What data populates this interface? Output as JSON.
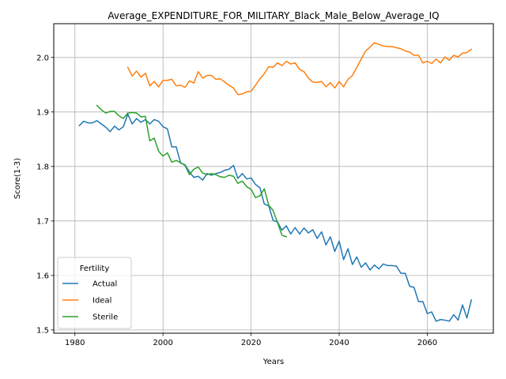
{
  "chart_data": {
    "type": "line",
    "title": "Average_EXPENDITURE_FOR_MILITARY_Black_Male_Below_Average_IQ",
    "xlabel": "Years",
    "ylabel": "Score(1-3)",
    "xlim": [
      1975.2,
      2075
    ],
    "ylim": [
      1.494,
      2.062
    ],
    "xticks": [
      1980,
      2000,
      2020,
      2040,
      2060
    ],
    "yticks": [
      1.5,
      1.6,
      1.7,
      1.8,
      1.9,
      2.0
    ],
    "ytick_format": "1f",
    "grid": true,
    "legend": {
      "title": "Fertility",
      "placement": "lower-left"
    },
    "series": [
      {
        "name": "Actual",
        "color": "#1f77b4",
        "x": [
          1981,
          1982,
          1983,
          1984,
          1985,
          1986,
          1987,
          1988,
          1989,
          1990,
          1991,
          1992,
          1993,
          1994,
          1995,
          1996,
          1997,
          1998,
          1999,
          2000,
          2001,
          2002,
          2003,
          2004,
          2005,
          2006,
          2007,
          2008,
          2009,
          2010,
          2011,
          2012,
          2013,
          2014,
          2015,
          2016,
          2017,
          2018,
          2019,
          2020,
          2021,
          2022,
          2023,
          2024,
          2025,
          2026,
          2027,
          2028,
          2029,
          2030,
          2031,
          2032,
          2033,
          2034,
          2035,
          2036,
          2037,
          2038,
          2039,
          2040,
          2041,
          2042,
          2043,
          2044,
          2045,
          2046,
          2047,
          2048,
          2049,
          2050,
          2051,
          2052,
          2053,
          2054,
          2055,
          2056,
          2057,
          2058,
          2059,
          2060,
          2061,
          2062,
          2063,
          2064,
          2065,
          2066,
          2067,
          2068,
          2069,
          2070
        ],
        "values": [
          1.875,
          1.883,
          1.88,
          1.88,
          1.884,
          1.878,
          1.872,
          1.864,
          1.874,
          1.867,
          1.873,
          1.896,
          1.878,
          1.888,
          1.881,
          1.886,
          1.878,
          1.886,
          1.883,
          1.873,
          1.869,
          1.836,
          1.836,
          1.806,
          1.803,
          1.79,
          1.78,
          1.782,
          1.775,
          1.787,
          1.784,
          1.787,
          1.789,
          1.793,
          1.795,
          1.802,
          1.778,
          1.787,
          1.777,
          1.779,
          1.767,
          1.761,
          1.731,
          1.728,
          1.701,
          1.698,
          1.683,
          1.691,
          1.676,
          1.688,
          1.676,
          1.687,
          1.678,
          1.684,
          1.668,
          1.68,
          1.656,
          1.671,
          1.644,
          1.663,
          1.629,
          1.649,
          1.62,
          1.634,
          1.615,
          1.623,
          1.61,
          1.619,
          1.612,
          1.621,
          1.618,
          1.618,
          1.617,
          1.604,
          1.604,
          1.58,
          1.578,
          1.552,
          1.552,
          1.53,
          1.533,
          1.516,
          1.519,
          1.518,
          1.516,
          1.528,
          1.518,
          1.546,
          1.522,
          1.555
        ]
      },
      {
        "name": "Ideal",
        "color": "#ff7f0e",
        "x": [
          1992,
          1993,
          1994,
          1995,
          1996,
          1997,
          1998,
          1999,
          2000,
          2001,
          2002,
          2003,
          2004,
          2005,
          2006,
          2007,
          2008,
          2009,
          2010,
          2011,
          2012,
          2013,
          2014,
          2015,
          2016,
          2017,
          2018,
          2019,
          2020,
          2021,
          2022,
          2023,
          2024,
          2025,
          2026,
          2027,
          2028,
          2029,
          2030,
          2031,
          2032,
          2033,
          2034,
          2035,
          2036,
          2037,
          2038,
          2039,
          2040,
          2041,
          2042,
          2043,
          2044,
          2045,
          2046,
          2047,
          2048,
          2049,
          2050,
          2051,
          2052,
          2053,
          2054,
          2055,
          2056,
          2057,
          2058,
          2059,
          2060,
          2061,
          2062,
          2063,
          2064,
          2065,
          2066,
          2067,
          2068,
          2069,
          2070
        ],
        "values": [
          1.982,
          1.966,
          1.975,
          1.964,
          1.971,
          1.948,
          1.956,
          1.946,
          1.958,
          1.958,
          1.96,
          1.948,
          1.949,
          1.945,
          1.957,
          1.953,
          1.974,
          1.962,
          1.967,
          1.967,
          1.96,
          1.961,
          1.955,
          1.949,
          1.944,
          1.932,
          1.933,
          1.937,
          1.938,
          1.949,
          1.961,
          1.97,
          1.983,
          1.982,
          1.99,
          1.985,
          1.993,
          1.988,
          1.99,
          1.978,
          1.974,
          1.962,
          1.955,
          1.954,
          1.956,
          1.946,
          1.954,
          1.944,
          1.956,
          1.946,
          1.96,
          1.967,
          1.982,
          1.997,
          2.012,
          2.019,
          2.027,
          2.024,
          2.021,
          2.02,
          2.02,
          2.018,
          2.016,
          2.012,
          2.01,
          2.004,
          2.004,
          1.99,
          1.993,
          1.989,
          1.997,
          1.99,
          2.001,
          1.995,
          2.004,
          2.001,
          2.008,
          2.009,
          2.015
        ]
      },
      {
        "name": "Sterile",
        "color": "#2ca02c",
        "x": [
          1985,
          1986,
          1987,
          1988,
          1989,
          1990,
          1991,
          1992,
          1993,
          1994,
          1995,
          1996,
          1997,
          1998,
          1999,
          2000,
          2001,
          2002,
          2003,
          2004,
          2005,
          2006,
          2007,
          2008,
          2009,
          2010,
          2011,
          2012,
          2013,
          2014,
          2015,
          2016,
          2017,
          2018,
          2019,
          2020,
          2021,
          2022,
          2023,
          2024,
          2025,
          2026,
          2027,
          2028
        ],
        "values": [
          1.912,
          1.904,
          1.898,
          1.901,
          1.901,
          1.893,
          1.888,
          1.898,
          1.899,
          1.898,
          1.891,
          1.892,
          1.847,
          1.852,
          1.828,
          1.819,
          1.825,
          1.808,
          1.811,
          1.807,
          1.802,
          1.785,
          1.795,
          1.799,
          1.788,
          1.785,
          1.787,
          1.785,
          1.781,
          1.78,
          1.784,
          1.782,
          1.769,
          1.773,
          1.763,
          1.758,
          1.743,
          1.746,
          1.759,
          1.729,
          1.719,
          1.697,
          1.674,
          1.671
        ]
      }
    ]
  }
}
